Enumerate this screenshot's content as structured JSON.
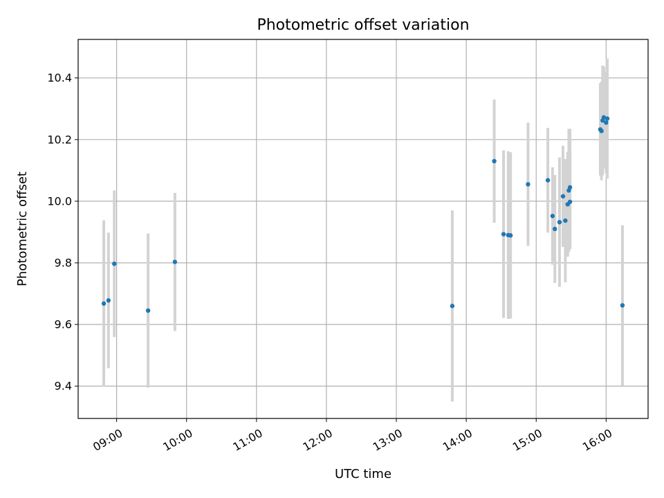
{
  "chart_data": {
    "type": "scatter",
    "title": "Photometric offset variation",
    "xlabel": "UTC time",
    "ylabel": "Photometric offset",
    "xlim": [
      "08:27",
      "16:36"
    ],
    "ylim": [
      9.295,
      10.525
    ],
    "x_ticks": [
      "09:00",
      "10:00",
      "11:00",
      "12:00",
      "13:00",
      "14:00",
      "15:00",
      "16:00"
    ],
    "y_ticks": [
      "9.4",
      "9.6",
      "9.8",
      "10.0",
      "10.2",
      "10.4"
    ],
    "grid": true,
    "marker_color": "#1f77b4",
    "errorbar_color": "#d3d3d3",
    "points": [
      {
        "time": "08:49",
        "value": 9.668,
        "error": 0.27
      },
      {
        "time": "08:53",
        "value": 9.678,
        "error": 0.22
      },
      {
        "time": "08:58",
        "value": 9.797,
        "error": 0.238
      },
      {
        "time": "09:27",
        "value": 9.645,
        "error": 0.25
      },
      {
        "time": "09:50",
        "value": 9.803,
        "error": 0.224
      },
      {
        "time": "13:48",
        "value": 9.66,
        "error": 0.31
      },
      {
        "time": "14:24",
        "value": 10.13,
        "error": 0.2
      },
      {
        "time": "14:32",
        "value": 9.893,
        "error": 0.272
      },
      {
        "time": "14:36",
        "value": 9.89,
        "error": 0.272
      },
      {
        "time": "14:38",
        "value": 9.889,
        "error": 0.27
      },
      {
        "time": "14:53",
        "value": 10.055,
        "error": 0.2
      },
      {
        "time": "15:10",
        "value": 10.068,
        "error": 0.17
      },
      {
        "time": "15:14",
        "value": 9.952,
        "error": 0.158
      },
      {
        "time": "15:16",
        "value": 9.91,
        "error": 0.175
      },
      {
        "time": "15:20",
        "value": 9.932,
        "error": 0.21
      },
      {
        "time": "15:23",
        "value": 10.016,
        "error": 0.164
      },
      {
        "time": "15:25",
        "value": 9.937,
        "error": 0.2
      },
      {
        "time": "15:27",
        "value": 9.99,
        "error": 0.17
      },
      {
        "time": "15:28",
        "value": 10.035,
        "error": 0.2
      },
      {
        "time": "15:29",
        "value": 10.045,
        "error": 0.19
      },
      {
        "time": "15:29",
        "value": 9.998,
        "error": 0.154
      },
      {
        "time": "15:55",
        "value": 10.233,
        "error": 0.15
      },
      {
        "time": "15:56",
        "value": 10.228,
        "error": 0.16
      },
      {
        "time": "15:57",
        "value": 10.262,
        "error": 0.178
      },
      {
        "time": "15:58",
        "value": 10.272,
        "error": 0.165
      },
      {
        "time": "16:00",
        "value": 10.255,
        "error": 0.163
      },
      {
        "time": "16:01",
        "value": 10.268,
        "error": 0.195
      },
      {
        "time": "16:14",
        "value": 9.662,
        "error": 0.26
      }
    ]
  }
}
